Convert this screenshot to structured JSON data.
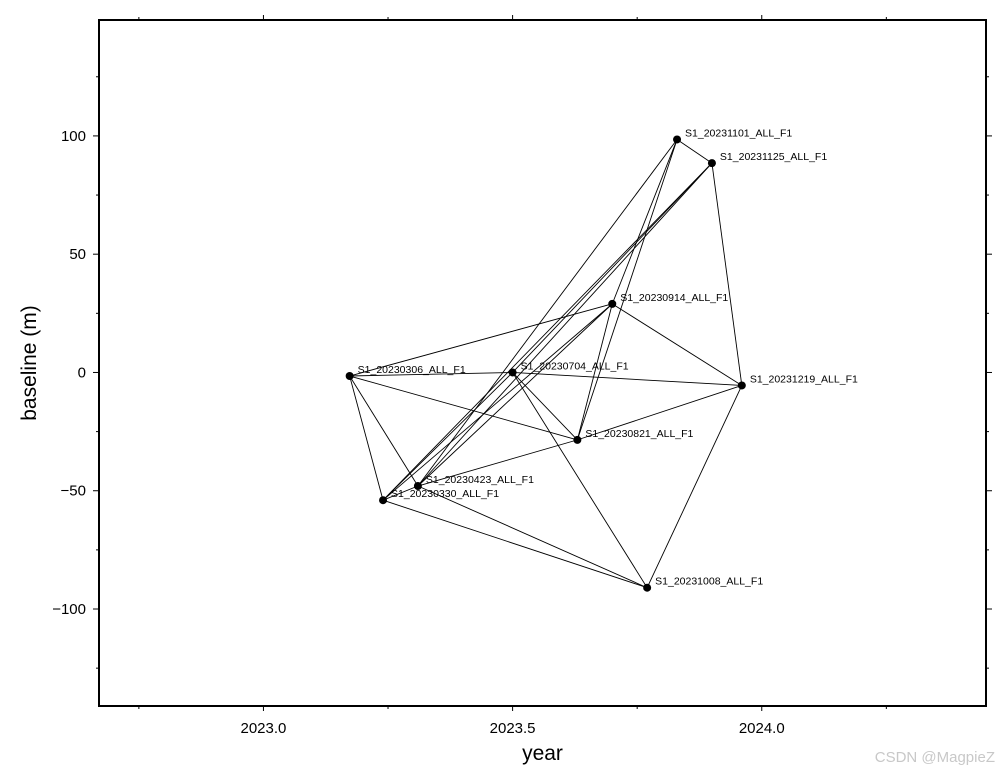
{
  "chart_data": {
    "type": "scatter",
    "title": "",
    "xlabel": "year",
    "ylabel": "baseline (m)",
    "xlim": [
      2022.67,
      2024.45
    ],
    "ylim": [
      -141,
      149
    ],
    "x_ticks": [
      2023.0,
      2023.5,
      2024.0
    ],
    "x_tick_labels": [
      "2023.0",
      "2023.5",
      "2024.0"
    ],
    "y_ticks": [
      -100,
      -50,
      0,
      50,
      100
    ],
    "y_tick_labels": [
      "−100",
      "−50",
      "0",
      "50",
      "100"
    ],
    "grid": false,
    "legend": "none",
    "line_color": "#000000",
    "marker_color": "#000000",
    "points": [
      {
        "label": "S1_20230306_ALL_F1",
        "x": 2023.173,
        "y": -1.5
      },
      {
        "label": "S1_20230330_ALL_F1",
        "x": 2023.24,
        "y": -54
      },
      {
        "label": "S1_20230423_ALL_F1",
        "x": 2023.31,
        "y": -48
      },
      {
        "label": "S1_20230704_ALL_F1",
        "x": 2023.5,
        "y": 0
      },
      {
        "label": "S1_20230821_ALL_F1",
        "x": 2023.63,
        "y": -28.5
      },
      {
        "label": "S1_20230914_ALL_F1",
        "x": 2023.7,
        "y": 29
      },
      {
        "label": "S1_20231008_ALL_F1",
        "x": 2023.77,
        "y": -91
      },
      {
        "label": "S1_20231101_ALL_F1",
        "x": 2023.83,
        "y": 98.5
      },
      {
        "label": "S1_20231125_ALL_F1",
        "x": 2023.9,
        "y": 88.5
      },
      {
        "label": "S1_20231219_ALL_F1",
        "x": 2023.96,
        "y": -5.5
      }
    ],
    "edges": [
      [
        0,
        1
      ],
      [
        0,
        2
      ],
      [
        0,
        3
      ],
      [
        0,
        4
      ],
      [
        0,
        5
      ],
      [
        1,
        2
      ],
      [
        1,
        3
      ],
      [
        1,
        5
      ],
      [
        1,
        6
      ],
      [
        1,
        8
      ],
      [
        2,
        4
      ],
      [
        2,
        5
      ],
      [
        2,
        6
      ],
      [
        2,
        7
      ],
      [
        2,
        8
      ],
      [
        3,
        4
      ],
      [
        3,
        6
      ],
      [
        3,
        8
      ],
      [
        3,
        9
      ],
      [
        4,
        5
      ],
      [
        4,
        7
      ],
      [
        4,
        9
      ],
      [
        5,
        7
      ],
      [
        5,
        9
      ],
      [
        6,
        9
      ],
      [
        7,
        8
      ],
      [
        8,
        9
      ]
    ]
  },
  "watermark": "CSDN @MagpieZ"
}
